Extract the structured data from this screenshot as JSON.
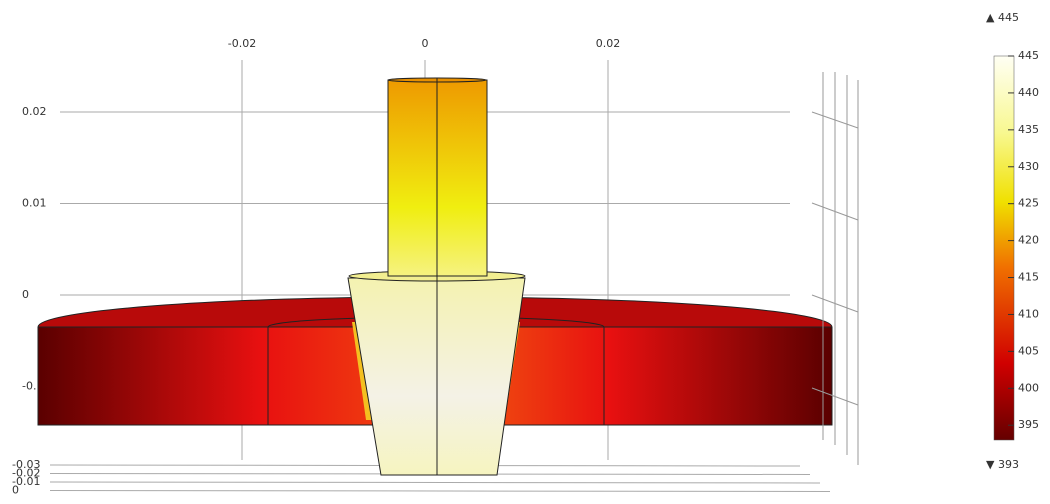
{
  "axes": {
    "x_ticks": [
      -0.02,
      0,
      0.02
    ],
    "y_ticks": [
      0.02,
      0.01,
      0,
      {
        "value": -0.01,
        "label": "-0."
      }
    ],
    "z_ticks": [
      -0.03,
      -0.02,
      -0.01,
      0
    ]
  },
  "colorbar": {
    "max": 445,
    "min": 393,
    "ticks": [
      395,
      400,
      405,
      410,
      415,
      420,
      425,
      430,
      435,
      440,
      445
    ]
  }
}
